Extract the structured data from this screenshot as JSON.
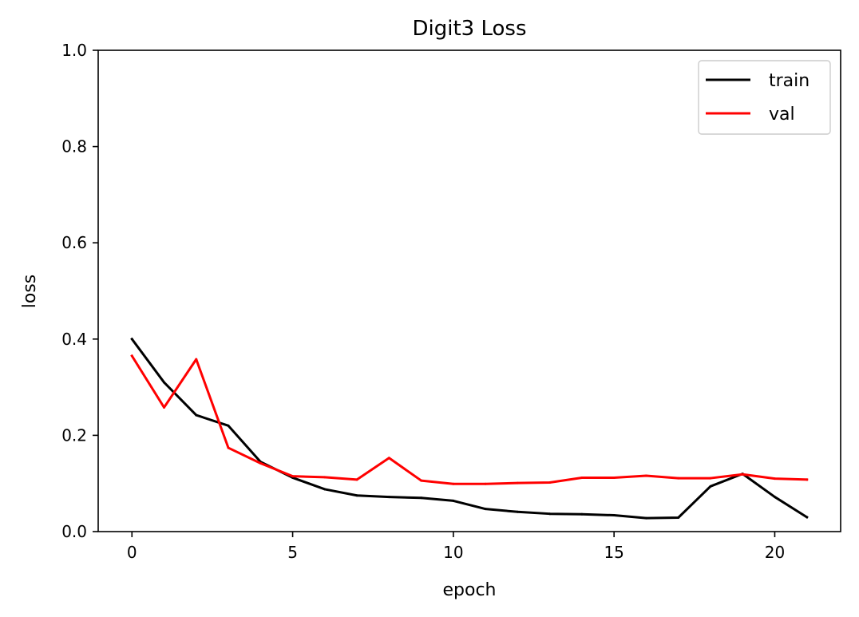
{
  "chart_data": {
    "type": "line",
    "title": "Digit3 Loss",
    "xlabel": "epoch",
    "ylabel": "loss",
    "xlim": [
      -1.05,
      22.05
    ],
    "ylim": [
      0.0,
      1.0
    ],
    "xticks": [
      0,
      5,
      10,
      15,
      20
    ],
    "yticks": [
      0.0,
      0.2,
      0.4,
      0.6,
      0.8,
      1.0
    ],
    "grid": false,
    "legend_position": "top-right",
    "x": [
      0,
      1,
      2,
      3,
      4,
      5,
      6,
      7,
      8,
      9,
      10,
      11,
      12,
      13,
      14,
      15,
      16,
      17,
      18,
      19,
      20,
      21
    ],
    "series": [
      {
        "name": "train",
        "color": "#000000",
        "values": [
          0.4,
          0.31,
          0.242,
          0.22,
          0.145,
          0.112,
          0.088,
          0.075,
          0.072,
          0.07,
          0.064,
          0.047,
          0.041,
          0.037,
          0.036,
          0.034,
          0.028,
          0.029,
          0.094,
          0.12,
          0.072,
          0.03
        ]
      },
      {
        "name": "val",
        "color": "#ff0000",
        "values": [
          0.365,
          0.258,
          0.358,
          0.174,
          0.142,
          0.115,
          0.113,
          0.108,
          0.153,
          0.106,
          0.099,
          0.099,
          0.101,
          0.102,
          0.112,
          0.112,
          0.116,
          0.111,
          0.111,
          0.119,
          0.11,
          0.108
        ]
      }
    ]
  }
}
